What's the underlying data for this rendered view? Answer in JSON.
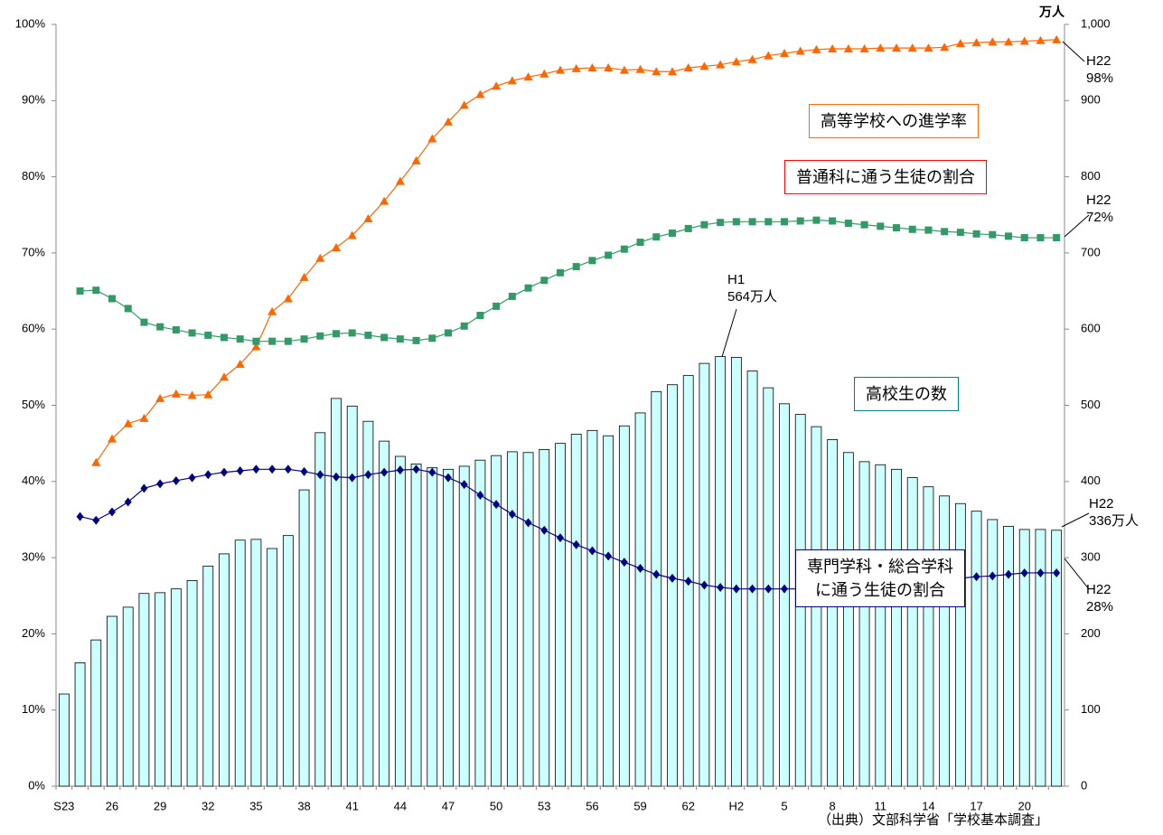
{
  "chart_data": {
    "type": "combo",
    "y2label": "万人",
    "source": "（出典）文部科学省「学校基本調査」",
    "categories": [
      "S23",
      null,
      null,
      "26",
      null,
      null,
      "29",
      null,
      null,
      "32",
      null,
      null,
      "35",
      null,
      null,
      "38",
      null,
      null,
      "41",
      null,
      null,
      "44",
      null,
      null,
      "47",
      null,
      null,
      "50",
      null,
      null,
      "53",
      null,
      null,
      "56",
      null,
      null,
      "59",
      null,
      null,
      "62",
      null,
      null,
      "H2",
      null,
      null,
      "5",
      null,
      null,
      "8",
      null,
      null,
      "11",
      null,
      null,
      "14",
      null,
      null,
      "17",
      null,
      null,
      "20",
      null,
      null
    ],
    "ylim": [
      0,
      100
    ],
    "yticks": [
      {
        "value": 0,
        "label": "0%"
      },
      {
        "value": 10,
        "label": "10%"
      },
      {
        "value": 20,
        "label": "20%"
      },
      {
        "value": 30,
        "label": "30%"
      },
      {
        "value": 40,
        "label": "40%"
      },
      {
        "value": 50,
        "label": "50%"
      },
      {
        "value": 60,
        "label": "60%"
      },
      {
        "value": 70,
        "label": "70%"
      },
      {
        "value": 80,
        "label": "80%"
      },
      {
        "value": 90,
        "label": "90%"
      },
      {
        "value": 100,
        "label": "100%"
      }
    ],
    "y2lim": [
      0,
      1000
    ],
    "y2ticks": [
      0,
      100,
      200,
      300,
      400,
      500,
      600,
      700,
      800,
      900,
      {
        "value": 1000,
        "label": "1,000"
      }
    ],
    "series": [
      {
        "name": "高校生の数",
        "type": "bar",
        "axis": "y2",
        "color": "#ccffff",
        "label_color": "#008080",
        "values": [
          121,
          162,
          192,
          223,
          235,
          253,
          254,
          259,
          270,
          289,
          305,
          323,
          324,
          312,
          329,
          389,
          464,
          509,
          499,
          479,
          453,
          433,
          423,
          418,
          416,
          420,
          428,
          434,
          439,
          438,
          442,
          450,
          462,
          467,
          460,
          473,
          490,
          518,
          527,
          539,
          555,
          564,
          563,
          545,
          523,
          502,
          488,
          472,
          455,
          438,
          426,
          422,
          416,
          405,
          393,
          381,
          371,
          361,
          350,
          341,
          337,
          337,
          336
        ]
      },
      {
        "name": "高等学校への進学率",
        "type": "line",
        "marker": "triangle",
        "color": "#ff6600",
        "label_color": "#ff6600",
        "values": [
          null,
          null,
          42.5,
          45.6,
          47.6,
          48.3,
          50.9,
          51.5,
          51.3,
          51.4,
          53.7,
          55.4,
          57.7,
          62.3,
          64.0,
          66.8,
          69.3,
          70.7,
          72.3,
          74.5,
          76.8,
          79.4,
          82.1,
          85.0,
          87.2,
          89.4,
          90.8,
          91.9,
          92.6,
          93.1,
          93.5,
          94.0,
          94.2,
          94.3,
          94.3,
          94.0,
          94.1,
          93.8,
          93.8,
          94.3,
          94.5,
          94.7,
          95.1,
          95.4,
          95.9,
          96.2,
          96.5,
          96.7,
          96.8,
          96.8,
          96.8,
          96.9,
          96.9,
          96.9,
          96.9,
          97.0,
          97.5,
          97.6,
          97.7,
          97.7,
          97.8,
          97.9,
          98.0
        ]
      },
      {
        "name": "普通科に通う生徒の割合",
        "type": "line",
        "marker": "square",
        "color": "#339966",
        "label_color": "#ff0000",
        "values": [
          null,
          65.0,
          65.1,
          64.0,
          62.7,
          60.9,
          60.3,
          59.9,
          59.5,
          59.2,
          58.9,
          58.7,
          58.4,
          58.4,
          58.4,
          58.7,
          59.1,
          59.4,
          59.5,
          59.2,
          58.9,
          58.7,
          58.5,
          58.8,
          59.5,
          60.4,
          61.8,
          63.0,
          64.3,
          65.4,
          66.4,
          67.4,
          68.2,
          69.0,
          69.7,
          70.5,
          71.4,
          72.1,
          72.6,
          73.2,
          73.7,
          74.0,
          74.1,
          74.1,
          74.1,
          74.1,
          74.2,
          74.3,
          74.2,
          73.9,
          73.7,
          73.5,
          73.3,
          73.1,
          73.0,
          72.8,
          72.7,
          72.5,
          72.4,
          72.2,
          72.0,
          72.0,
          72.0
        ]
      },
      {
        "name": "専門学科・総合学科\nに通う生徒の割合",
        "type": "line",
        "marker": "diamond",
        "color": "#000080",
        "label_color": "#000080",
        "values": [
          null,
          35.4,
          34.9,
          36.0,
          37.3,
          39.1,
          39.7,
          40.1,
          40.5,
          40.9,
          41.2,
          41.4,
          41.6,
          41.6,
          41.6,
          41.3,
          40.9,
          40.6,
          40.5,
          40.9,
          41.2,
          41.5,
          41.6,
          41.2,
          40.5,
          39.6,
          38.2,
          37.0,
          35.7,
          34.6,
          33.6,
          32.6,
          31.7,
          30.9,
          30.2,
          29.4,
          28.6,
          27.8,
          27.3,
          26.9,
          26.4,
          26.1,
          25.9,
          25.9,
          25.9,
          25.9,
          25.9,
          25.8,
          25.9,
          26.1,
          26.3,
          26.5,
          26.7,
          26.9,
          27.0,
          27.2,
          27.3,
          27.5,
          27.6,
          27.8,
          28.0,
          28.0,
          28.0
        ]
      }
    ],
    "annotations": [
      "H22\n98%",
      "H22\n72%",
      "H1\n564万人",
      "H22\n336万人",
      "H22\n28%"
    ]
  }
}
